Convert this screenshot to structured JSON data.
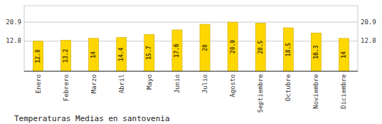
{
  "chart_data": {
    "type": "bar",
    "title": "Temperaturas Medias en santovenia",
    "categories": [
      "Enero",
      "Febrero",
      "Marzo",
      "Abril",
      "Mayo",
      "Junio",
      "Julio",
      "Agosto",
      "Septiembre",
      "Octubre",
      "Noviembre",
      "Diciembre"
    ],
    "values": [
      12.8,
      13.2,
      14.0,
      14.4,
      15.7,
      17.6,
      20.0,
      20.9,
      20.5,
      18.5,
      16.3,
      14.0
    ],
    "color": "#FFD700",
    "ylim": [
      0,
      27.9
    ],
    "yticks": [
      12.8,
      20.9
    ],
    "grid": true,
    "data_labels": true
  }
}
